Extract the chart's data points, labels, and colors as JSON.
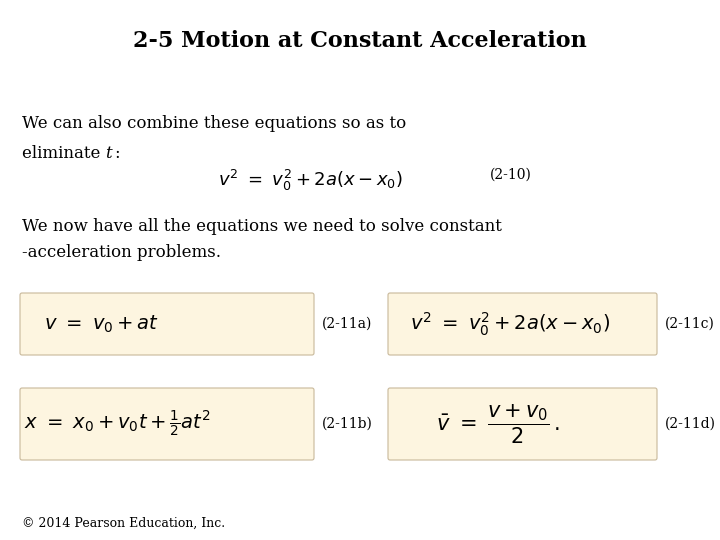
{
  "title": "2-5 Motion at Constant Acceleration",
  "title_fontsize": 16,
  "title_fontweight": "bold",
  "bg_color": "#ffffff",
  "text_color": "#000000",
  "box_color": "#fdf5e0",
  "box_edge_color": "#c8b89a",
  "para1_line1": "We can also combine these equations so as to",
  "para1_line2": "eliminate ",
  "para1_italic": "t",
  "para1_colon": ":",
  "eq_main": "$v^2\\ =\\ v_0^2 + 2a(x - x_0)$",
  "eq_main_label": "(2-10)",
  "para2_line1": "We now have all the equations we need to solve constant",
  "para2_line2": "-acceleration problems.",
  "eq_11a": "$v\\ =\\ v_0 + at$",
  "eq_11a_label": "(2-11a)",
  "eq_11b": "$x\\ =\\ x_0 + v_0 t + \\frac{1}{2}at^2$",
  "eq_11b_label": "(2-11b)",
  "eq_11c": "$v^2\\ =\\ v_0^2 + 2a(x - x_0)$",
  "eq_11c_label": "(2-11c)",
  "eq_11d_full": "$\\bar{v}\\ =\\ \\dfrac{v + v_0}{2}\\,.$",
  "eq_11d_label": "(2-11d)",
  "footer": "© 2014 Pearson Education, Inc.",
  "text_fontsize": 12,
  "eq_fontsize": 12,
  "label_fontsize": 10,
  "footer_fontsize": 9
}
